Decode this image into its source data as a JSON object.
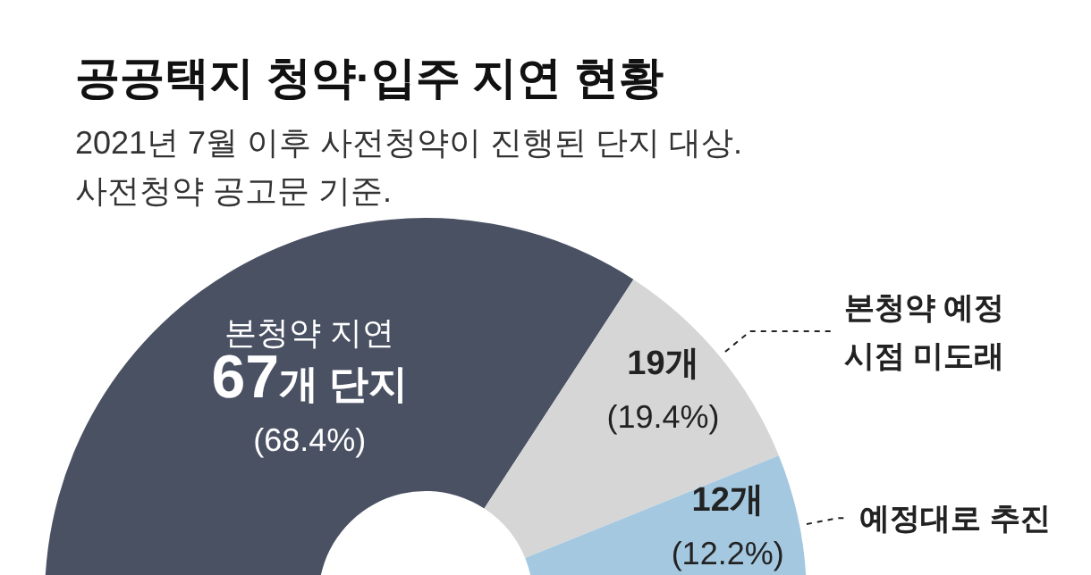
{
  "chart_data": {
    "type": "donut",
    "title": "공공택지 청약·입주 지연 현황",
    "subtitle": "2021년 7월 이후 사전청약이 진행된 단지 대상.\n사전청약 공고문 기준.",
    "categories": [
      "본청약 지연",
      "본청약 예정 시점 미도래",
      "예정대로 추진"
    ],
    "values": [
      67,
      19,
      12
    ],
    "colors": [
      "#4a5163",
      "#d6d6d6",
      "#a4c8e0"
    ],
    "value_labels": [
      "67개 단지\n(68.4%)",
      "19개\n(19.4%)",
      "12개\n(12.2%)"
    ]
  }
}
